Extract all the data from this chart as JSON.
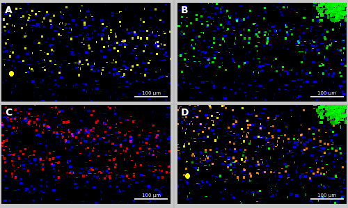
{
  "figsize": [
    5.0,
    2.99
  ],
  "dpi": 100,
  "fig_bg_color": "#c8c8c8",
  "panel_label_fontsize": 10,
  "scale_bar_text": "100 μm",
  "scale_bar_fontsize": 5,
  "separator_color": "#bbbbbb",
  "panels": {
    "A": {
      "primary_color": [
        1.0,
        1.0,
        0.0
      ],
      "secondary_color": null
    },
    "B": {
      "primary_color": [
        0.0,
        1.0,
        0.0
      ],
      "secondary_color": null,
      "top_right_blob": true
    },
    "C": {
      "primary_color": [
        1.0,
        0.0,
        0.0
      ],
      "secondary_color": null
    },
    "D": {
      "primary_color": [
        1.0,
        0.55,
        0.0
      ],
      "secondary_color": [
        0.0,
        1.0,
        0.0
      ],
      "top_right_blob": true,
      "extra_yellow": true
    }
  }
}
